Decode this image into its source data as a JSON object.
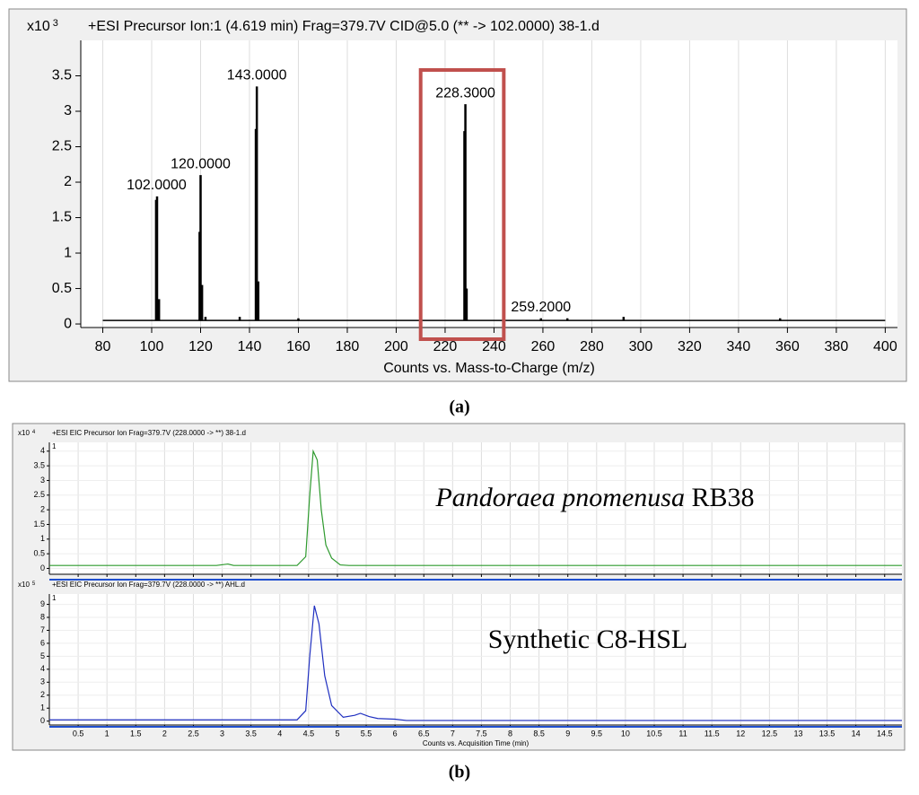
{
  "chart_data": [
    {
      "type": "stem",
      "title": "+ESI Precursor Ion:1 (4.619 min) Frag=379.7V CID@5.0 (** -> 102.0000) 38-1.d",
      "y_multiplier": {
        "base": "x10",
        "exp": "3"
      },
      "x_label": "Counts vs. Mass-to-Charge (m/z)",
      "x": [
        101.8,
        102.2,
        103,
        119.6,
        120,
        120.6,
        122,
        136,
        142.6,
        143,
        143.6,
        160,
        227.9,
        228.3,
        228.8,
        259.2,
        270,
        293,
        357
      ],
      "values": [
        1.75,
        1.8,
        0.35,
        1.3,
        2.1,
        0.55,
        0.1,
        0.1,
        2.75,
        3.35,
        0.6,
        0.08,
        2.72,
        3.1,
        0.5,
        0.08,
        0.08,
        0.1,
        0.08
      ],
      "color": "#000000",
      "baseline": 0.05,
      "annotations": [
        {
          "x": 102,
          "text": "102.0000"
        },
        {
          "x": 120,
          "text": "120.0000"
        },
        {
          "x": 143,
          "text": "143.0000"
        },
        {
          "x": 228.3,
          "text": "228.3000"
        },
        {
          "x": 259.2,
          "text": "259.2000"
        }
      ],
      "highlight": {
        "xlim": [
          210,
          244
        ],
        "color": "#c0504d"
      },
      "xlim": [
        71,
        405
      ],
      "ylim": [
        -0.05,
        4.0
      ],
      "xticks": [
        80,
        100,
        120,
        140,
        160,
        180,
        200,
        220,
        240,
        260,
        280,
        300,
        320,
        340,
        360,
        380,
        400
      ],
      "yticks": [
        0,
        0.5,
        1,
        1.5,
        2,
        2.5,
        3,
        3.5
      ],
      "grid": true,
      "caption": "(a)"
    },
    {
      "type": "line",
      "title": "+ESI EIC Precursor Ion Frag=379.7V (228.0000 -> **) 38-1.d",
      "pane_label": "1",
      "y_multiplier": {
        "base": "x10",
        "exp": "4"
      },
      "annotation": {
        "italic": "Pandoraea pnomenusa",
        "text": "RB38"
      },
      "x": [
        0,
        2.9,
        3.1,
        3.2,
        4.3,
        4.45,
        4.52,
        4.58,
        4.65,
        4.72,
        4.8,
        4.9,
        5.05,
        5.2,
        14.8
      ],
      "values": [
        0.1,
        0.1,
        0.15,
        0.1,
        0.1,
        0.4,
        2.5,
        4.0,
        3.7,
        2.0,
        0.8,
        0.35,
        0.12,
        0.1,
        0.1
      ],
      "color": "#2e9a2e",
      "xlim": [
        0,
        14.8
      ],
      "ylim": [
        -0.2,
        4.3
      ],
      "yticks": [
        0,
        0.5,
        1,
        1.5,
        2,
        2.5,
        3,
        3.5,
        4
      ],
      "xticks": [
        0.5,
        1,
        1.5,
        2,
        2.5,
        3,
        3.5,
        4,
        4.5,
        5,
        5.5,
        6,
        6.5,
        7,
        7.5,
        8,
        8.5,
        9,
        9.5,
        10,
        10.5,
        11,
        11.5,
        12,
        12.5,
        13,
        13.5,
        14,
        14.5
      ],
      "xtick_labels": false,
      "grid": true
    },
    {
      "type": "line",
      "title": "+ESI EIC Precursor Ion Frag=379.7V (228.0000 -> **) AHL.d",
      "pane_label": "1",
      "y_multiplier": {
        "base": "x10",
        "exp": "5"
      },
      "annotation": {
        "text": "Synthetic C8-HSL"
      },
      "x_label": "Counts vs. Acquisition Time (min)",
      "x": [
        0,
        4.3,
        4.45,
        4.52,
        4.6,
        4.68,
        4.78,
        4.9,
        5.1,
        5.3,
        5.4,
        5.55,
        5.7,
        6.0,
        6.2,
        14.8
      ],
      "values": [
        0.1,
        0.1,
        0.8,
        5,
        8.9,
        7.5,
        3.5,
        1.2,
        0.3,
        0.45,
        0.6,
        0.35,
        0.2,
        0.15,
        0.05,
        0.05
      ],
      "color": "#1f2fc0",
      "xlim": [
        0,
        14.8
      ],
      "ylim": [
        -0.3,
        9.8
      ],
      "yticks": [
        0,
        1,
        2,
        3,
        4,
        5,
        6,
        7,
        8,
        9
      ],
      "xticks": [
        0.5,
        1,
        1.5,
        2,
        2.5,
        3,
        3.5,
        4,
        4.5,
        5,
        5.5,
        6,
        6.5,
        7,
        7.5,
        8,
        8.5,
        9,
        9.5,
        10,
        10.5,
        11,
        11.5,
        12,
        12.5,
        13,
        13.5,
        14,
        14.5
      ],
      "xtick_labels": true,
      "grid": true,
      "caption": "(b)"
    }
  ]
}
